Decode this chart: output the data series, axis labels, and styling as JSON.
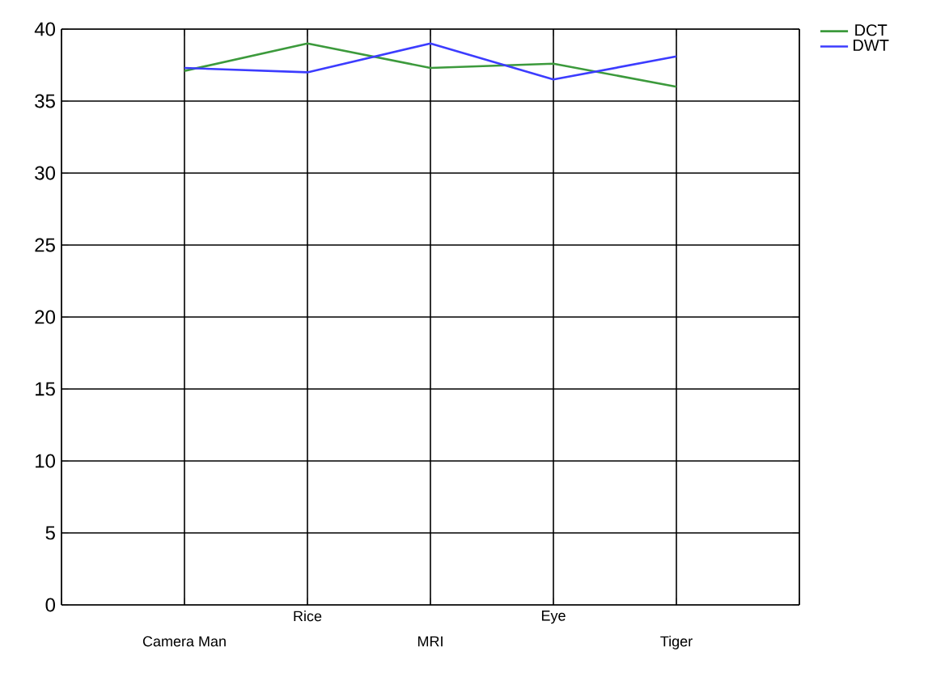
{
  "chart_data": {
    "type": "line",
    "categories": [
      "Camera Man",
      "Rice",
      "MRI",
      "Eye",
      "Tiger"
    ],
    "series": [
      {
        "name": "DCT",
        "color": "#3c9a3c",
        "values": [
          37.1,
          39.0,
          37.3,
          37.6,
          36.0
        ]
      },
      {
        "name": "DWT",
        "color": "#3c3cff",
        "values": [
          37.3,
          37.0,
          39.0,
          36.5,
          38.1
        ]
      }
    ],
    "ylim": [
      0,
      40
    ],
    "yticks": [
      0,
      5,
      10,
      15,
      20,
      25,
      30,
      35,
      40
    ],
    "grid": true,
    "legend": "top right",
    "marker": "none",
    "line_style": "solid"
  }
}
